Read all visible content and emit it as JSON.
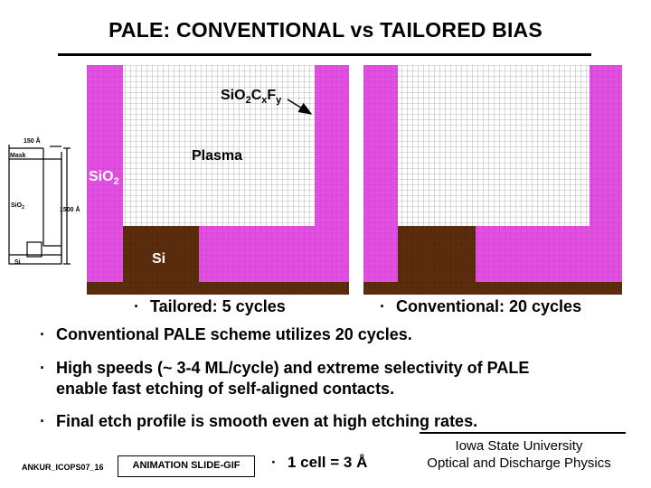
{
  "title": "PALE: CONVENTIONAL vs TAILORED BIAS",
  "diagram": {
    "labels": {
      "polymer": "SiO",
      "polymer_sub1": "2",
      "polymer_c": "C",
      "polymer_sub2": "x",
      "polymer_f": "F",
      "polymer_sub3": "y",
      "plasma": "Plasma",
      "oxide": "SiO",
      "oxide_sub": "2",
      "silicon": "Si"
    },
    "schematic": {
      "mask_label": "Mask",
      "oxide_label": "SiO",
      "oxide_sub": "2",
      "si_label": "Si",
      "width_dim": "150 Å",
      "depth_dim": "1500 Å"
    },
    "colors": {
      "mask": "#e34ee3",
      "silicon": "#5b2d0c",
      "grid": "#a8a8a8"
    }
  },
  "captions": {
    "left": "Tailored: 5 cycles",
    "right": "Conventional: 20 cycles"
  },
  "bullets": [
    "Conventional PALE scheme utilizes 20 cycles.",
    "High speeds (~ 3-4 ML/cycle) and extreme selectivity of PALE",
    "enable fast etching of self-aligned contacts.",
    "Final etch profile is smooth even at high etching rates."
  ],
  "footer": {
    "code": "ANKUR_ICOPS07_16",
    "animation": "ANIMATION SLIDE-GIF",
    "cell": "1 cell = 3 Å",
    "org_line1": "Iowa State University",
    "org_line2": "Optical and Discharge Physics"
  }
}
